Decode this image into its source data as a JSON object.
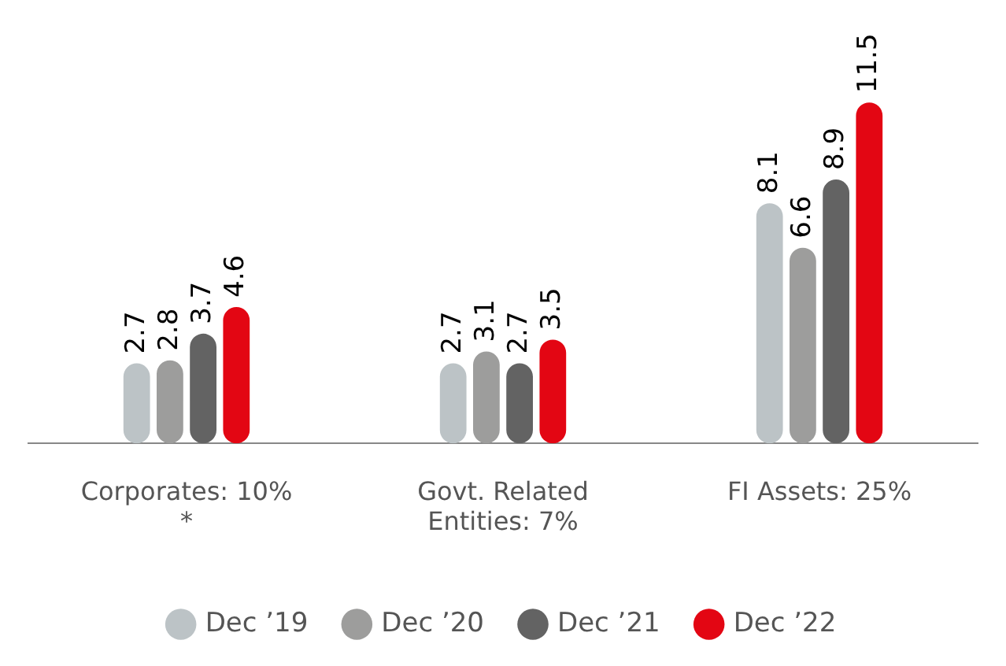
{
  "chart_data": {
    "type": "bar",
    "categories": [
      "Corporates: 10% *",
      "Govt. Related Entities: 7%",
      "FI Assets: 25%"
    ],
    "series": [
      {
        "name": "Dec ’19",
        "color": "#bcc3c6",
        "values": [
          2.7,
          2.7,
          8.1
        ]
      },
      {
        "name": "Dec ’20",
        "color": "#9d9d9c",
        "values": [
          2.8,
          3.1,
          6.6
        ]
      },
      {
        "name": "Dec ’21",
        "color": "#636363",
        "values": [
          3.7,
          2.7,
          8.9
        ]
      },
      {
        "name": "Dec ’22",
        "color": "#e30613",
        "values": [
          4.6,
          3.5,
          11.5
        ]
      }
    ],
    "data_labels": true,
    "grid": false,
    "legend": "bottom"
  }
}
